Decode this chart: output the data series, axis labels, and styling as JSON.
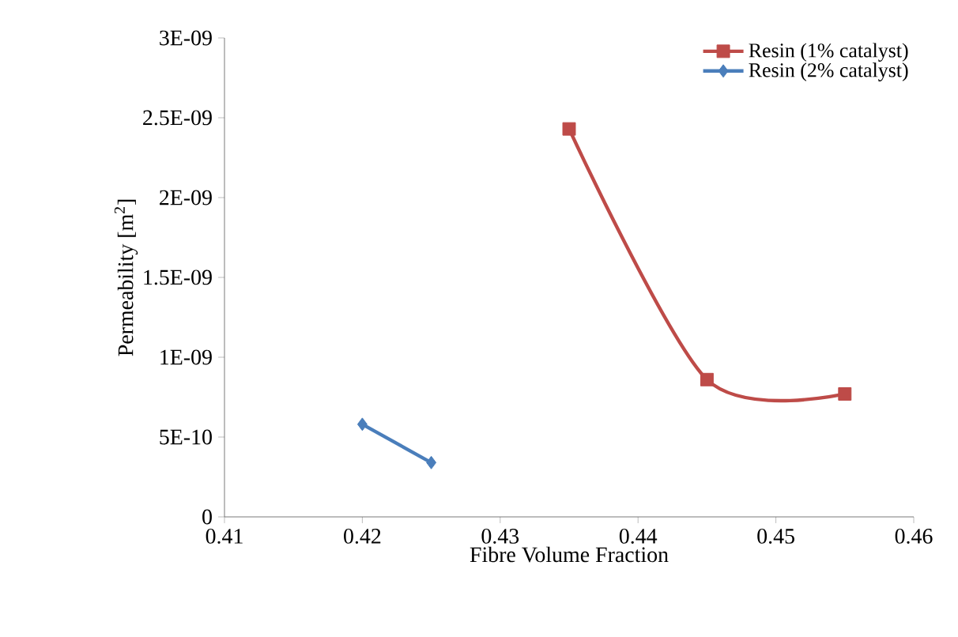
{
  "chart_data": {
    "type": "line",
    "xlabel": "Fibre Volume Fraction",
    "ylabel": "Permeability [m$^{2}$]",
    "series": [
      {
        "name": "Resin (1% catalyst)",
        "color": "#be4b48",
        "marker": "square",
        "x": [
          0.435,
          0.445,
          0.455
        ],
        "values": [
          2.43e-09,
          8.6e-10,
          7.7e-10
        ]
      },
      {
        "name": "Resin (2% catalyst)",
        "color": "#4a7ebb",
        "marker": "diamond",
        "x": [
          0.42,
          0.425
        ],
        "values": [
          5.8e-10,
          3.4e-10
        ]
      }
    ],
    "xlim": [
      0.41,
      0.46
    ],
    "xticks": [
      0.41,
      0.42,
      0.43,
      0.44,
      0.45,
      0.46
    ],
    "ylim": [
      0,
      3e-09
    ],
    "yticks": [
      {
        "value": 0,
        "label": "0"
      },
      {
        "value": 5e-10,
        "label": "5E-10"
      },
      {
        "value": 1e-09,
        "label": "1E-09"
      },
      {
        "value": 1.5e-09,
        "label": "1.5E-09"
      },
      {
        "value": 2e-09,
        "label": "2E-09"
      },
      {
        "value": 2.5e-09,
        "label": "2.5E-09"
      },
      {
        "value": 3e-09,
        "label": "3E-09"
      }
    ],
    "grid": false,
    "legend": "top right"
  }
}
